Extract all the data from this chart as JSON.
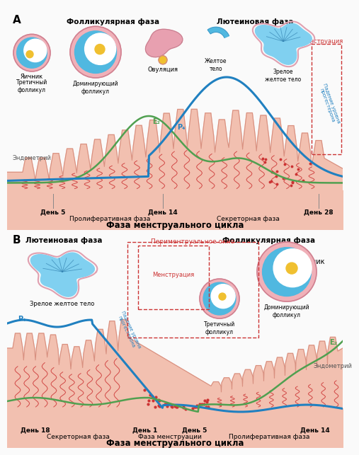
{
  "bg_color": "#fafafa",
  "endo_fill": "#f2c0b0",
  "endo_fill2": "#f5d0c0",
  "endo_edge": "#d89080",
  "blue_color": "#2080c0",
  "green_color": "#50a050",
  "red_color": "#cc3333",
  "pink_fill": "#f0b0b8",
  "blue_fill": "#50b8e0",
  "blue_fill_dark": "#2878b0",
  "egg_color": "#f0c030",
  "panel_A": {
    "follicular_label": "Фолликулярная фаза",
    "luteal_label": "Лютеиновая фаза",
    "menstruation_label": "Менструация",
    "ovary_label": "Яичник",
    "tertiary_label": "Третичный\nфолликул",
    "dominant_label": "Доминирующий\nфолликул",
    "ovulation_label": "Овуляция",
    "yellow_body_label": "Желтое\nтело",
    "mature_label": "Зрелое\nжелтое тело",
    "endometrium_label": "Эндометрий",
    "falling_label": "Падение уровня\nпрогестерона",
    "E2_label": "E₂",
    "P4_label": "P₄",
    "day5": "День 5",
    "day14": "День 14",
    "day28": "День 28",
    "prolif_phase": "Пролиферативная фаза",
    "secret_phase": "Секреторная фаза",
    "main_title": "Фаза менструального цикла"
  },
  "panel_B": {
    "luteal_label": "Лютеиновая фаза",
    "follicular_label": "Фолликулярная фаза",
    "perimenstrual_label": "Периментруальное окно",
    "mature_label": "Зрелое желтое тело",
    "menstruation_label": "Менструация",
    "tertiary_label": "Третичный\nфолликул",
    "ovary_label": "Яичник",
    "dominant_label": "Доминирующий\nфолликул",
    "endometrium_label": "Эндометрий",
    "falling_label": "Падение уровня\nпрогестерона",
    "P4_label": "P₄",
    "E2_label": "E₂",
    "day18": "День 18",
    "day1": "День 1",
    "day5": "День 5",
    "day14": "День 14",
    "secret_phase": "Секреторная фаза",
    "menst_phase": "Фаза менструации",
    "prolif_phase": "Пролиферативная фаза",
    "main_title": "Фаза менструального цикла"
  }
}
